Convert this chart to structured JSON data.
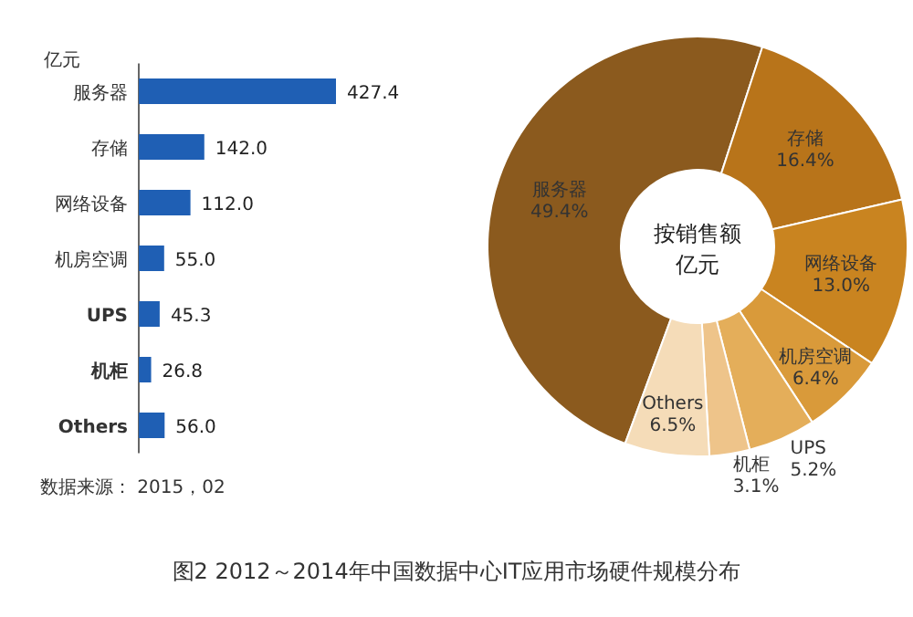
{
  "chart_data": [
    {
      "type": "bar",
      "orientation": "horizontal",
      "ylabel": "亿元",
      "categories": [
        "服务器",
        "存储",
        "网络设备",
        "机房空调",
        "UPS",
        "机柜",
        "Others"
      ],
      "values": [
        427.4,
        142.0,
        112.0,
        55.0,
        45.3,
        26.8,
        56.0
      ],
      "value_labels": [
        "427.4",
        "142.0",
        "112.0",
        "55.0",
        "45.3",
        "26.8",
        "56.0"
      ],
      "color": "#1f5fb4",
      "annotations": [
        "数据来源： 2015，02",
        "图2  2012～2014年中国数据中心IT应用市场硬件规模分布"
      ]
    },
    {
      "type": "donut",
      "title": "按销售额",
      "subtitle": "亿元",
      "categories": [
        "服务器",
        "存储",
        "网络设备",
        "机房空调",
        "UPS",
        "机柜",
        "Others"
      ],
      "values": [
        49.4,
        16.4,
        13.0,
        6.4,
        5.2,
        3.1,
        6.5
      ],
      "value_labels": [
        "49.4%",
        "16.4%",
        "13.0%",
        "6.4%",
        "5.2%",
        "3.1%",
        "6.5%"
      ],
      "colors": [
        "#8b5a1e",
        "#b8741a",
        "#c98420",
        "#d99a3a",
        "#e4ae5a",
        "#eec48a",
        "#f5dcb8"
      ]
    }
  ]
}
